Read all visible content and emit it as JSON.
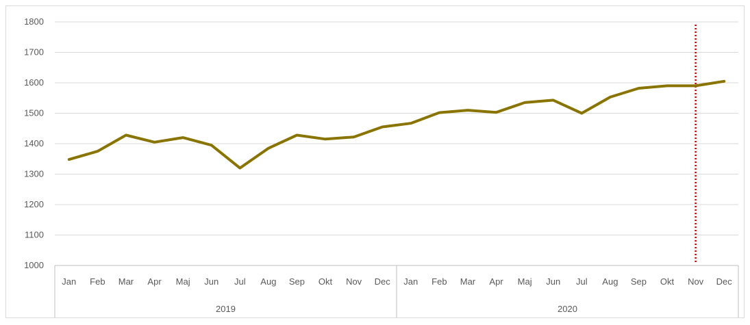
{
  "chart_data": {
    "type": "line",
    "title": "",
    "xlabel": "",
    "ylabel": "",
    "ylim": [
      1000,
      1800
    ],
    "y_ticks": [
      1000,
      1100,
      1200,
      1300,
      1400,
      1500,
      1600,
      1700,
      1800
    ],
    "categories": [
      "Jan",
      "Feb",
      "Mar",
      "Apr",
      "Maj",
      "Jun",
      "Jul",
      "Aug",
      "Sep",
      "Okt",
      "Nov",
      "Dec",
      "Jan",
      "Feb",
      "Mar",
      "Apr",
      "Maj",
      "Jun",
      "Jul",
      "Aug",
      "Sep",
      "Okt",
      "Nov",
      "Dec"
    ],
    "groups": [
      {
        "label": "2019",
        "count": 12
      },
      {
        "label": "2020",
        "count": 12
      }
    ],
    "series": [
      {
        "values": [
          1348,
          1375,
          1428,
          1405,
          1420,
          1395,
          1320,
          1385,
          1428,
          1415,
          1422,
          1455,
          1467,
          1502,
          1510,
          1503,
          1535,
          1543,
          1500,
          1553,
          1582,
          1590,
          1590,
          1605
        ],
        "color": "#8a7400"
      }
    ],
    "marker_line": {
      "category_index": 22,
      "color": "#c00000",
      "style": "dotted"
    },
    "grid": true,
    "legend": "none"
  }
}
